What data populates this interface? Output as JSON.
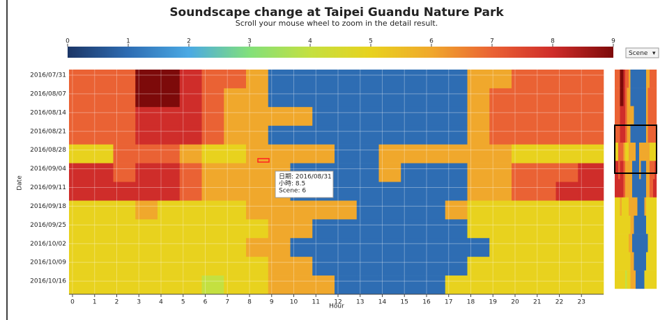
{
  "chart_data": {
    "type": "heatmap",
    "title": "Soundscape change at Taipei Guandu Nature Park",
    "subtitle": "Scroll your mouse wheel to zoom in the detail result.",
    "x_label": "Hour",
    "y_label": "Date",
    "dropdown": "Scene",
    "categories": [
      "2016/07/31",
      "2016/08/07",
      "2016/08/14",
      "2016/08/21",
      "2016/08/28",
      "2016/09/04",
      "2016/09/11",
      "2016/09/18",
      "2016/09/25",
      "2016/10/02",
      "2016/10/09",
      "2016/10/16"
    ],
    "xticks": [
      0,
      1,
      2,
      3,
      4,
      5,
      6,
      7,
      8,
      9,
      10,
      11,
      12,
      13,
      14,
      15,
      16,
      17,
      18,
      19,
      20,
      21,
      22,
      23
    ],
    "xlim": [
      0,
      24
    ],
    "values": [
      [
        7,
        7,
        7,
        9,
        9,
        8,
        7,
        7,
        6,
        1,
        1,
        1,
        1,
        1,
        1,
        1,
        1,
        1,
        6,
        6,
        7,
        7,
        7,
        7
      ],
      [
        7,
        7,
        7,
        9,
        9,
        8,
        7,
        6,
        6,
        1,
        1,
        1,
        1,
        1,
        1,
        1,
        1,
        1,
        6,
        7,
        7,
        7,
        7,
        7
      ],
      [
        7,
        7,
        7,
        8,
        8,
        8,
        7,
        6,
        6,
        6,
        6,
        1,
        1,
        1,
        1,
        1,
        1,
        1,
        6,
        7,
        7,
        7,
        7,
        7
      ],
      [
        7,
        7,
        7,
        8,
        8,
        8,
        7,
        6,
        6,
        1,
        1,
        1,
        1,
        1,
        1,
        1,
        1,
        1,
        6,
        7,
        7,
        7,
        7,
        7
      ],
      [
        5,
        5,
        7,
        7,
        7,
        6,
        5,
        5,
        6,
        6,
        6,
        6,
        1,
        1,
        6,
        6,
        6,
        6,
        6,
        6,
        5,
        5,
        5,
        5
      ],
      [
        8,
        8,
        7,
        8,
        8,
        7,
        6,
        6,
        6,
        6,
        1,
        1,
        1,
        1,
        6,
        1,
        1,
        1,
        6,
        6,
        7,
        7,
        7,
        8
      ],
      [
        8,
        8,
        8,
        8,
        8,
        7,
        6,
        6,
        6,
        6,
        1,
        1,
        1,
        1,
        1,
        1,
        1,
        1,
        6,
        6,
        7,
        7,
        8,
        8
      ],
      [
        5,
        5,
        5,
        6,
        5,
        5,
        5,
        5,
        6,
        6,
        6,
        6,
        6,
        1,
        1,
        1,
        1,
        6,
        5,
        5,
        5,
        5,
        5,
        5
      ],
      [
        5,
        5,
        5,
        5,
        5,
        5,
        5,
        5,
        5,
        6,
        6,
        1,
        1,
        1,
        1,
        1,
        1,
        1,
        5,
        5,
        5,
        5,
        5,
        5
      ],
      [
        5,
        5,
        5,
        5,
        5,
        5,
        5,
        5,
        6,
        6,
        1,
        1,
        1,
        1,
        1,
        1,
        1,
        1,
        1,
        5,
        5,
        5,
        5,
        5
      ],
      [
        5,
        5,
        5,
        5,
        5,
        5,
        5,
        5,
        5,
        6,
        6,
        1,
        1,
        1,
        1,
        1,
        1,
        1,
        5,
        5,
        5,
        5,
        5,
        5
      ],
      [
        5,
        5,
        5,
        5,
        5,
        5,
        4,
        5,
        5,
        6,
        6,
        6,
        1,
        1,
        1,
        1,
        1,
        5,
        5,
        5,
        5,
        5,
        5,
        5
      ]
    ],
    "colorscale": [
      "#1b3566",
      "#2e6db3",
      "#4aa9e4",
      "#82e07a",
      "#c4e040",
      "#e8d21e",
      "#f0a82c",
      "#ea6234",
      "#cf2d2a",
      "#7d0a0a"
    ],
    "clim": [
      0,
      9
    ],
    "cticks": [
      0,
      1,
      2,
      3,
      4,
      5,
      6,
      7,
      8,
      9
    ],
    "tooltip": [
      "日期: 2016/08/31",
      "小時: 8.5",
      "Scene: 6"
    ]
  }
}
